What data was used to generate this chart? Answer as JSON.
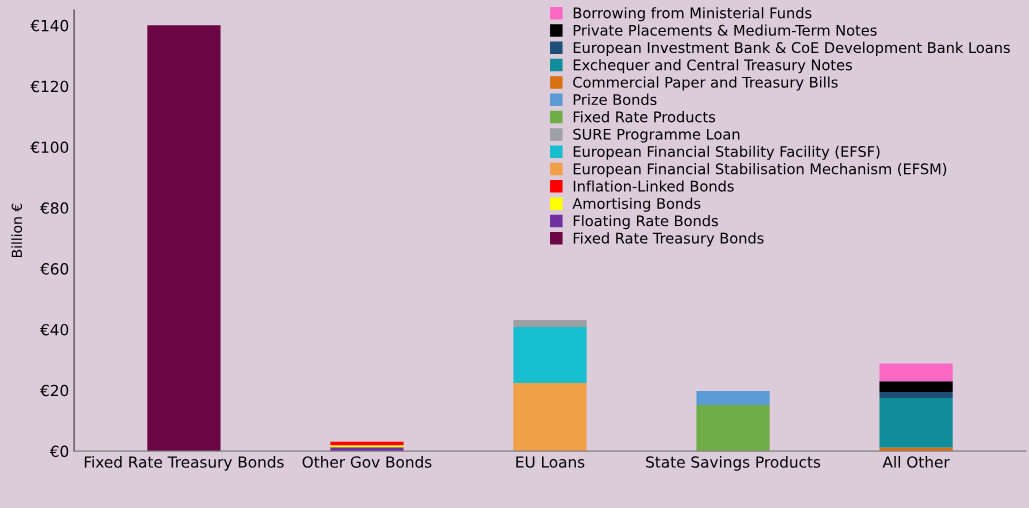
{
  "chart_data": {
    "type": "bar",
    "stacked": true,
    "ylabel": "Billion €",
    "categories": [
      "Fixed Rate Treasury Bonds",
      "Other Gov Bonds",
      "EU Loans",
      "State Savings Products",
      "All Other"
    ],
    "series": [
      {
        "name": "Fixed Rate Treasury Bonds",
        "color": "#6b0644",
        "values": [
          140,
          null,
          null,
          null,
          null
        ]
      },
      {
        "name": "Floating Rate Bonds",
        "color": "#7030a0",
        "values": [
          null,
          1.3,
          null,
          null,
          null
        ]
      },
      {
        "name": "Amortising Bonds",
        "color": "#ffff00",
        "values": [
          null,
          0.6,
          null,
          null,
          null
        ]
      },
      {
        "name": "Inflation-Linked Bonds",
        "color": "#ff0000",
        "values": [
          null,
          1.2,
          null,
          null,
          null
        ]
      },
      {
        "name": "European Financial Stabilisation Mechanism (EFSM)",
        "color": "#f0a048",
        "values": [
          null,
          null,
          22.4,
          null,
          null
        ]
      },
      {
        "name": "European Financial Stability Facility (EFSF)",
        "color": "#17becf",
        "values": [
          null,
          null,
          18.4,
          null,
          null
        ]
      },
      {
        "name": "SURE Programme Loan",
        "color": "#9ea0a6",
        "values": [
          null,
          null,
          2.3,
          null,
          null
        ]
      },
      {
        "name": "Fixed Rate Products",
        "color": "#70ad47",
        "values": [
          null,
          null,
          null,
          15.2,
          null
        ]
      },
      {
        "name": "Prize Bonds",
        "color": "#5b9bd5",
        "values": [
          null,
          null,
          null,
          4.6,
          null
        ]
      },
      {
        "name": "Commercial Paper and Treasury Bills",
        "color": "#d97014",
        "values": [
          null,
          null,
          null,
          null,
          1.2
        ]
      },
      {
        "name": "Exchequer and Central Treasury Notes",
        "color": "#118c9a",
        "values": [
          null,
          null,
          null,
          null,
          16.3
        ]
      },
      {
        "name": "European Investment Bank & CoE Development Bank Loans",
        "color": "#1f4e79",
        "values": [
          null,
          null,
          null,
          null,
          1.9
        ]
      },
      {
        "name": "Private Placements & Medium-Term Notes",
        "color": "#000000",
        "values": [
          null,
          null,
          null,
          null,
          3.6
        ]
      },
      {
        "name": "Borrowing from Ministerial Funds",
        "color": "#fb69c4",
        "values": [
          null,
          null,
          null,
          null,
          5.8
        ]
      }
    ],
    "ylim": [
      0,
      145
    ],
    "yticks": [
      {
        "value": 0,
        "label": "€0"
      },
      {
        "value": 20,
        "label": "€20"
      },
      {
        "value": 40,
        "label": "€40"
      },
      {
        "value": 60,
        "label": "€60"
      },
      {
        "value": 80,
        "label": "€80"
      },
      {
        "value": 100,
        "label": "€100"
      },
      {
        "value": 120,
        "label": "€120"
      },
      {
        "value": 140,
        "label": "€140"
      }
    ],
    "legend": "top right",
    "grid": false
  }
}
